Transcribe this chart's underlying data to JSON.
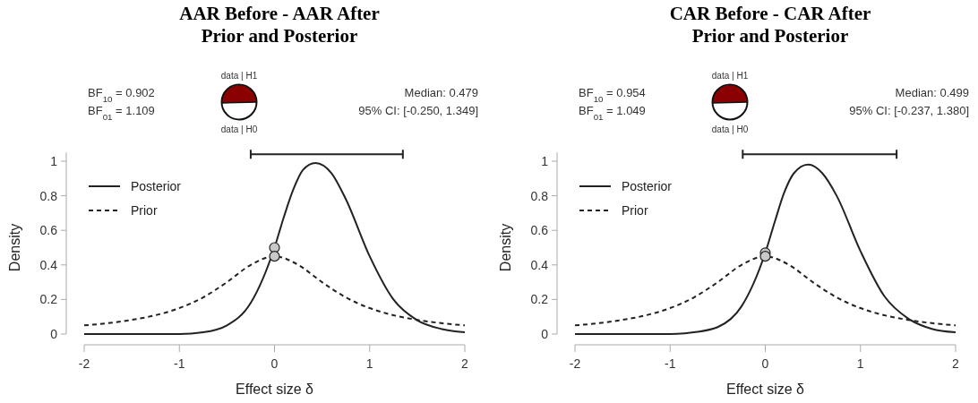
{
  "chart_data": [
    {
      "type": "line",
      "title": "AAR Before - AAR After",
      "subtitle": "Prior and Posterior",
      "xlabel": "Effect size δ",
      "ylabel": "Density",
      "xlim": [
        -2,
        2
      ],
      "xticks": [
        -2,
        -1,
        0,
        1,
        2
      ],
      "ylim": [
        0,
        1.05
      ],
      "yticks": [
        0,
        0.2,
        0.4,
        0.6,
        0.8,
        1
      ],
      "legend": "top left",
      "annotations": [
        "BF$_{10}$ = 0.902",
        "BF$_{01}$ = 1.109",
        "data | H1",
        "data | H0",
        "Median: 0.479",
        "95% CI: [-0.250, 1.349]"
      ],
      "series": [
        {
          "name": "Posterior",
          "type": "line",
          "line_style": "solid",
          "color": "#222222",
          "x": [
            -2,
            -1,
            -0.75,
            -0.5,
            -0.25,
            0,
            0.1,
            0.2,
            0.3,
            0.43,
            0.6,
            0.75,
            1,
            1.25,
            1.5,
            1.75,
            2
          ],
          "values": [
            0,
            0,
            0.01,
            0.05,
            0.18,
            0.5,
            0.68,
            0.84,
            0.95,
            0.99,
            0.93,
            0.78,
            0.45,
            0.2,
            0.08,
            0.03,
            0.01
          ]
        },
        {
          "name": "Prior",
          "type": "line",
          "line_style": "dashed",
          "color": "#222222",
          "x": [
            -2,
            -1.75,
            -1.5,
            -1.25,
            -1,
            -0.75,
            -0.5,
            -0.25,
            0,
            0.25,
            0.5,
            0.75,
            1,
            1.25,
            1.5,
            1.75,
            2
          ],
          "values": [
            0.05,
            0.063,
            0.082,
            0.109,
            0.15,
            0.212,
            0.3,
            0.4,
            0.45,
            0.4,
            0.3,
            0.212,
            0.15,
            0.109,
            0.082,
            0.063,
            0.05
          ]
        },
        {
          "type": "scatter",
          "marker": "circle",
          "color": "#c8c8c8",
          "x": [
            0,
            0
          ],
          "values": [
            0.5,
            0.45
          ]
        },
        {
          "type": "line",
          "line_style": "solid",
          "color": "#222222",
          "x": [
            -0.25,
            1.349
          ],
          "values": [
            1.04,
            1.04
          ]
        }
      ]
    },
    {
      "type": "line",
      "title": "CAR Before - CAR After",
      "subtitle": "Prior and Posterior",
      "xlabel": "Effect size δ",
      "ylabel": "Density",
      "xlim": [
        -2,
        2
      ],
      "xticks": [
        -2,
        -1,
        0,
        1,
        2
      ],
      "ylim": [
        0,
        1.05
      ],
      "yticks": [
        0,
        0.2,
        0.4,
        0.6,
        0.8,
        1
      ],
      "legend": "top left",
      "annotations": [
        "BF$_{10}$ = 0.954",
        "BF$_{01}$ = 1.049",
        "data | H1",
        "data | H0",
        "Median: 0.499",
        "95% CI: [-0.237, 1.380]"
      ],
      "series": [
        {
          "name": "Posterior",
          "type": "line",
          "line_style": "solid",
          "color": "#222222",
          "x": [
            -2,
            -1,
            -0.75,
            -0.5,
            -0.25,
            0,
            0.1,
            0.2,
            0.3,
            0.45,
            0.6,
            0.75,
            1,
            1.25,
            1.5,
            1.75,
            2
          ],
          "values": [
            0,
            0,
            0.01,
            0.04,
            0.16,
            0.47,
            0.65,
            0.82,
            0.93,
            0.98,
            0.93,
            0.8,
            0.48,
            0.22,
            0.09,
            0.03,
            0.01
          ]
        },
        {
          "name": "Prior",
          "type": "line",
          "line_style": "dashed",
          "color": "#222222",
          "x": [
            -2,
            -1.75,
            -1.5,
            -1.25,
            -1,
            -0.75,
            -0.5,
            -0.25,
            0,
            0.25,
            0.5,
            0.75,
            1,
            1.25,
            1.5,
            1.75,
            2
          ],
          "values": [
            0.05,
            0.063,
            0.082,
            0.109,
            0.15,
            0.212,
            0.3,
            0.4,
            0.45,
            0.4,
            0.3,
            0.212,
            0.15,
            0.109,
            0.082,
            0.063,
            0.05
          ]
        },
        {
          "type": "scatter",
          "marker": "circle",
          "color": "#c8c8c8",
          "x": [
            0,
            0
          ],
          "values": [
            0.47,
            0.45
          ]
        },
        {
          "type": "line",
          "line_style": "solid",
          "color": "#222222",
          "x": [
            -0.237,
            1.38
          ],
          "values": [
            1.04,
            1.04
          ]
        }
      ]
    }
  ]
}
